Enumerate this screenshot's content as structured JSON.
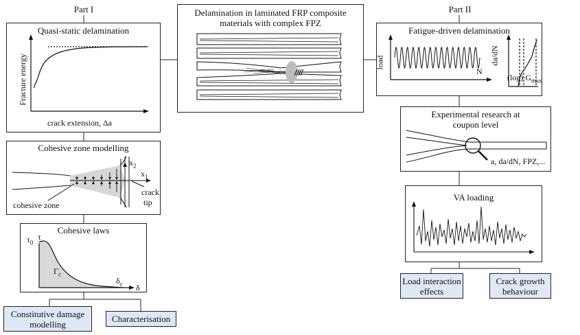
{
  "part1": {
    "header": "Part I",
    "quasi_static": {
      "title": "Quasi-static delamination",
      "ylabel": "Fracture energy",
      "xlabel": "crack extension, Δa"
    },
    "czm": {
      "title": "Cohesive zone modelling",
      "x2": "x",
      "x2_sub": "2",
      "x1": "x",
      "x1_sub": "1",
      "cohesive_zone": "cohesive zone",
      "crack": "crack",
      "tip": "tip"
    },
    "laws": {
      "title": "Cohesive laws",
      "tau0": "τ",
      "tau0_sub": "0",
      "tau": "τ",
      "gamma": "Γ",
      "gamma_sub": "c",
      "delta_c": "δ",
      "delta_c_sub": "c",
      "delta": "δ"
    },
    "outcomes": [
      "Constitutive damage modelling",
      "Characterisation"
    ]
  },
  "center": {
    "title_line1": "Delamination in laminated FRP composite",
    "title_line2": "materials with complex FPZ"
  },
  "part2": {
    "header": "Part II",
    "fatigue": {
      "title": "Fatigue-driven delamination",
      "load": "load",
      "n": "N",
      "dadn": "da/dN",
      "log_g": "(log) G",
      "g_sub": "max"
    },
    "experimental": {
      "title_line1": "Experimental research at",
      "title_line2": "coupon level",
      "annotation": "a, da/dN, FPZ,..."
    },
    "va": {
      "title": "VA loading"
    },
    "outcomes": [
      "Load interaction effects",
      "Crack growth behaviour"
    ]
  }
}
